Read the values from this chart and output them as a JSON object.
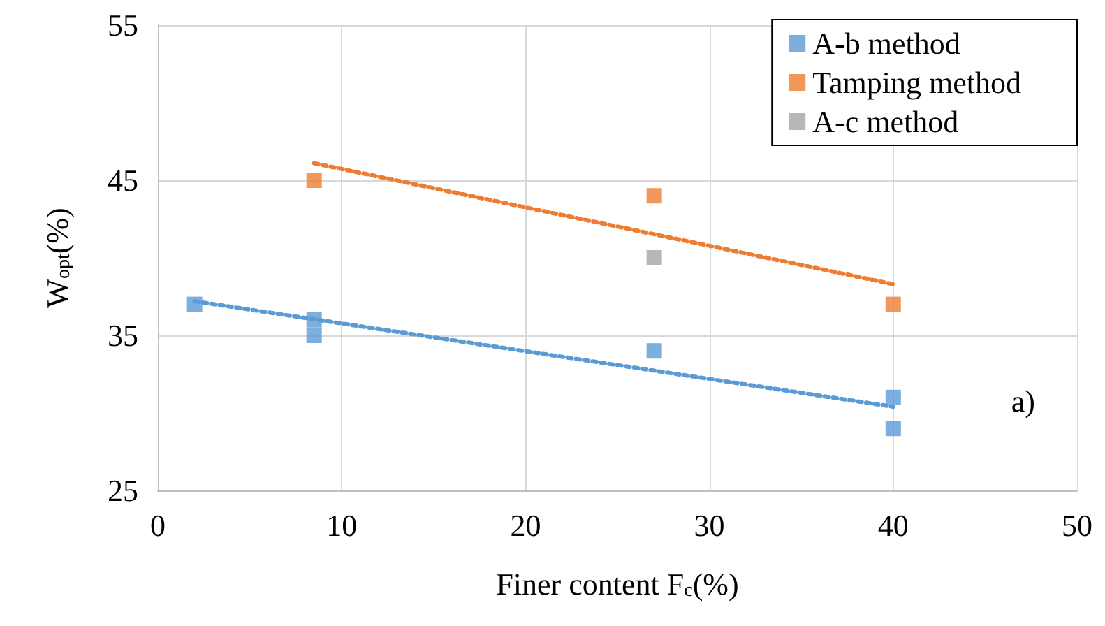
{
  "chart_data": {
    "type": "scatter",
    "xlabel": "Finer content F$_{c}$(%)",
    "ylabel": "W$_{opt}$(%)",
    "xlim": [
      0,
      50
    ],
    "xticks": [
      0,
      10,
      20,
      30,
      40,
      50
    ],
    "ylim": [
      25,
      55
    ],
    "yticks": [
      25,
      35,
      45,
      55
    ],
    "grid": true,
    "legend": "top right",
    "marker": "square",
    "series": [
      {
        "name": "A-b method",
        "color": "#5b9bd5",
        "x": [
          2,
          8.5,
          8.5,
          27,
          40,
          40
        ],
        "values": [
          37,
          36,
          35,
          34,
          31,
          29
        ]
      },
      {
        "name": "Tamping method",
        "color": "#ed7d31",
        "x": [
          8.5,
          27,
          40
        ],
        "values": [
          45,
          44,
          37
        ]
      },
      {
        "name": "A-c method",
        "color": "#a5a5a5",
        "x": [
          27
        ],
        "values": [
          40
        ]
      },
      {
        "type": "line",
        "color": "#5b9bd5",
        "line_style": "dotted",
        "marker": "none",
        "x": [
          2,
          40
        ],
        "values": [
          37.2,
          30.4
        ]
      },
      {
        "type": "line",
        "color": "#ed7d31",
        "line_style": "dotted",
        "marker": "none",
        "x": [
          8.5,
          40
        ],
        "values": [
          46.1,
          38.3
        ]
      }
    ],
    "annotations": [
      "a)"
    ]
  }
}
